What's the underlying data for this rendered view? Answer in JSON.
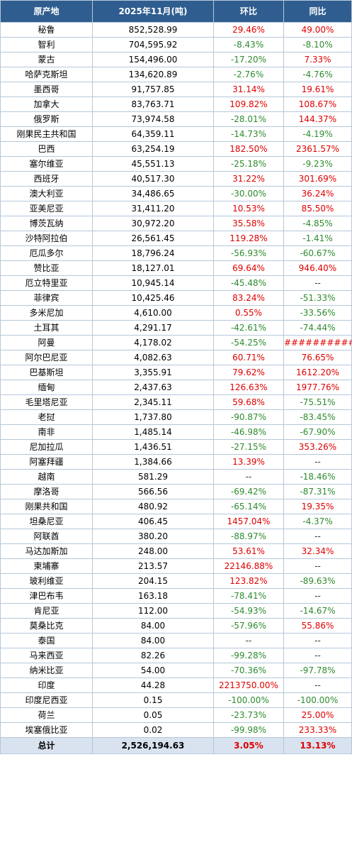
{
  "colors": {
    "header_bg": "#2f5d8f",
    "header_text": "#ffffff",
    "positive": "#e00000",
    "negative": "#2e8b2e",
    "border": "#b7c7dc",
    "total_bg": "#d9e3f0"
  },
  "header": {
    "origin": "原产地",
    "volume": "2025年11月(吨)",
    "mom": "环比",
    "yoy": "同比"
  },
  "rows": [
    {
      "origin": "秘鲁",
      "volume": "852,528.99",
      "mom": "29.46%",
      "yoy": "49.00%"
    },
    {
      "origin": "智利",
      "volume": "704,595.92",
      "mom": "-8.43%",
      "yoy": "-8.10%"
    },
    {
      "origin": "蒙古",
      "volume": "154,496.00",
      "mom": "-17.20%",
      "yoy": "7.33%"
    },
    {
      "origin": "哈萨克斯坦",
      "volume": "134,620.89",
      "mom": "-2.76%",
      "yoy": "-4.76%"
    },
    {
      "origin": "墨西哥",
      "volume": "91,757.85",
      "mom": "31.14%",
      "yoy": "19.61%"
    },
    {
      "origin": "加拿大",
      "volume": "83,763.71",
      "mom": "109.82%",
      "yoy": "108.67%"
    },
    {
      "origin": "俄罗斯",
      "volume": "73,974.58",
      "mom": "-28.01%",
      "yoy": "144.37%"
    },
    {
      "origin": "刚果民主共和国",
      "volume": "64,359.11",
      "mom": "-14.73%",
      "yoy": "-4.19%"
    },
    {
      "origin": "巴西",
      "volume": "63,254.19",
      "mom": "182.50%",
      "yoy": "2361.57%"
    },
    {
      "origin": "塞尔维亚",
      "volume": "45,551.13",
      "mom": "-25.18%",
      "yoy": "-9.23%"
    },
    {
      "origin": "西班牙",
      "volume": "40,517.30",
      "mom": "31.22%",
      "yoy": "301.69%"
    },
    {
      "origin": "澳大利亚",
      "volume": "34,486.65",
      "mom": "-30.00%",
      "yoy": "36.24%"
    },
    {
      "origin": "亚美尼亚",
      "volume": "31,411.20",
      "mom": "10.53%",
      "yoy": "85.50%"
    },
    {
      "origin": "博茨瓦纳",
      "volume": "30,972.20",
      "mom": "35.58%",
      "yoy": "-4.85%"
    },
    {
      "origin": "沙特阿拉伯",
      "volume": "26,561.45",
      "mom": "119.28%",
      "yoy": "-1.41%"
    },
    {
      "origin": "厄瓜多尔",
      "volume": "18,796.24",
      "mom": "-56.93%",
      "yoy": "-60.67%"
    },
    {
      "origin": "赞比亚",
      "volume": "18,127.01",
      "mom": "69.64%",
      "yoy": "946.40%"
    },
    {
      "origin": "厄立特里亚",
      "volume": "10,945.14",
      "mom": "-45.48%",
      "yoy": "--"
    },
    {
      "origin": "菲律宾",
      "volume": "10,425.46",
      "mom": "83.24%",
      "yoy": "-51.33%"
    },
    {
      "origin": "多米尼加",
      "volume": "4,610.00",
      "mom": "0.55%",
      "yoy": "-33.56%"
    },
    {
      "origin": "土耳其",
      "volume": "4,291.17",
      "mom": "-42.61%",
      "yoy": "-74.44%"
    },
    {
      "origin": "阿曼",
      "volume": "4,178.02",
      "mom": "-54.25%",
      "yoy": "###########"
    },
    {
      "origin": "阿尔巴尼亚",
      "volume": "4,082.63",
      "mom": "60.71%",
      "yoy": "76.65%"
    },
    {
      "origin": "巴基斯坦",
      "volume": "3,355.91",
      "mom": "79.62%",
      "yoy": "1612.20%"
    },
    {
      "origin": "缅甸",
      "volume": "2,437.63",
      "mom": "126.63%",
      "yoy": "1977.76%"
    },
    {
      "origin": "毛里塔尼亚",
      "volume": "2,345.11",
      "mom": "59.68%",
      "yoy": "-75.51%"
    },
    {
      "origin": "老挝",
      "volume": "1,737.80",
      "mom": "-90.87%",
      "yoy": "-83.45%"
    },
    {
      "origin": "南非",
      "volume": "1,485.14",
      "mom": "-46.98%",
      "yoy": "-67.90%"
    },
    {
      "origin": "尼加拉瓜",
      "volume": "1,436.51",
      "mom": "-27.15%",
      "yoy": "353.26%"
    },
    {
      "origin": "阿塞拜疆",
      "volume": "1,384.66",
      "mom": "13.39%",
      "yoy": "--"
    },
    {
      "origin": "越南",
      "volume": "581.29",
      "mom": "--",
      "yoy": "-18.46%"
    },
    {
      "origin": "摩洛哥",
      "volume": "566.56",
      "mom": "-69.42%",
      "yoy": "-87.31%"
    },
    {
      "origin": "刚果共和国",
      "volume": "480.92",
      "mom": "-65.14%",
      "yoy": "19.35%"
    },
    {
      "origin": "坦桑尼亚",
      "volume": "406.45",
      "mom": "1457.04%",
      "yoy": "-4.37%"
    },
    {
      "origin": "阿联酋",
      "volume": "380.20",
      "mom": "-88.97%",
      "yoy": "--"
    },
    {
      "origin": "马达加斯加",
      "volume": "248.00",
      "mom": "53.61%",
      "yoy": "32.34%"
    },
    {
      "origin": "柬埔寨",
      "volume": "213.57",
      "mom": "22146.88%",
      "yoy": "--"
    },
    {
      "origin": "玻利维亚",
      "volume": "204.15",
      "mom": "123.82%",
      "yoy": "-89.63%"
    },
    {
      "origin": "津巴布韦",
      "volume": "163.18",
      "mom": "-78.41%",
      "yoy": "--"
    },
    {
      "origin": "肯尼亚",
      "volume": "112.00",
      "mom": "-54.93%",
      "yoy": "-14.67%"
    },
    {
      "origin": "莫桑比克",
      "volume": "84.00",
      "mom": "-57.96%",
      "yoy": "55.86%"
    },
    {
      "origin": "泰国",
      "volume": "84.00",
      "mom": "--",
      "yoy": "--"
    },
    {
      "origin": "马来西亚",
      "volume": "82.26",
      "mom": "-99.28%",
      "yoy": "--"
    },
    {
      "origin": "纳米比亚",
      "volume": "54.00",
      "mom": "-70.36%",
      "yoy": "-97.78%"
    },
    {
      "origin": "印度",
      "volume": "44.28",
      "mom": "2213750.00%",
      "yoy": "--"
    },
    {
      "origin": "印度尼西亚",
      "volume": "0.15",
      "mom": "-100.00%",
      "yoy": "-100.00%"
    },
    {
      "origin": "荷兰",
      "volume": "0.05",
      "mom": "-23.73%",
      "yoy": "25.00%"
    },
    {
      "origin": "埃塞俄比亚",
      "volume": "0.02",
      "mom": "-99.98%",
      "yoy": "233.33%"
    }
  ],
  "total": {
    "origin": "总计",
    "volume": "2,526,194.63",
    "mom": "3.05%",
    "yoy": "13.13%"
  }
}
